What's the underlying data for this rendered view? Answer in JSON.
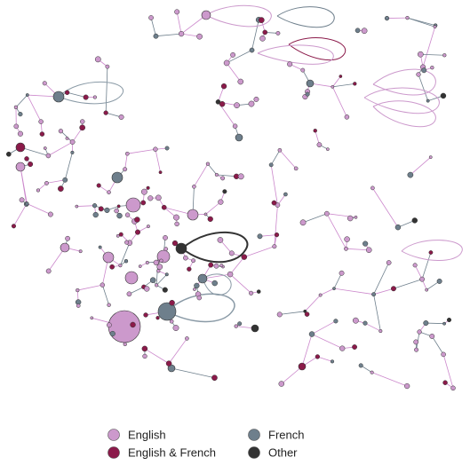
{
  "legend": {
    "items": [
      {
        "label": "English",
        "color": "#cc99cc"
      },
      {
        "label": "English & French",
        "color": "#8b1a4a"
      },
      {
        "label": "French",
        "color": "#6e7f8c"
      },
      {
        "label": "Other",
        "color": "#333333"
      }
    ]
  }
}
